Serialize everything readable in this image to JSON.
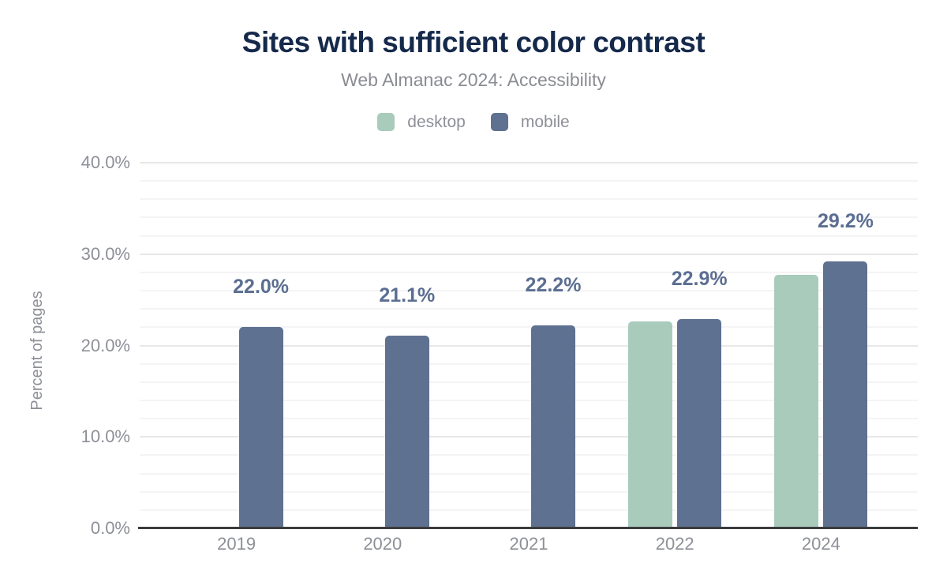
{
  "chart_data": {
    "type": "bar",
    "title": "Sites with sufficient color contrast",
    "subtitle": "Web Almanac 2024: Accessibility",
    "ylabel": "Percent of pages",
    "xlabel": "",
    "categories": [
      "2019",
      "2020",
      "2021",
      "2022",
      "2024"
    ],
    "series": [
      {
        "name": "desktop",
        "color": "#a9cbbc",
        "values": [
          null,
          null,
          null,
          22.6,
          27.7
        ]
      },
      {
        "name": "mobile",
        "color": "#5f7190",
        "values": [
          22.0,
          21.1,
          22.2,
          22.9,
          29.2
        ]
      }
    ],
    "bar_labels": [
      "22.0%",
      "21.1%",
      "22.2%",
      "22.9%",
      "29.2%"
    ],
    "bar_labels_attached_to": "mobile",
    "ylim": [
      0,
      40
    ],
    "ytick_labels": [
      "0.0%",
      "10.0%",
      "20.0%",
      "30.0%",
      "40.0%"
    ],
    "ytick_values": [
      0,
      10,
      20,
      30,
      40
    ],
    "minor_grid_step": 2,
    "major_grid_step": 10,
    "grid": "horizontal",
    "legend_position": "top"
  },
  "colors": {
    "title": "#15294b",
    "subtitle": "#8a8c93",
    "axis_text": "#8e9097",
    "bar_label": "#5b6e91",
    "grid_major": "#e8e8ea",
    "grid_minor": "#f4f4f6",
    "axis_line": "#3a3b3d",
    "background": "#ffffff"
  }
}
